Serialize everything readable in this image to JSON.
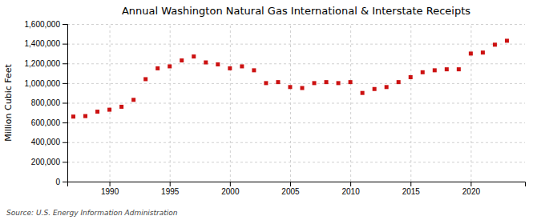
{
  "chart_data": {
    "type": "scatter",
    "title": "Annual Washington Natural Gas International & Interstate Receipts",
    "y_label": "Million Cubic Feet",
    "annotations": [
      "Source: U.S. Energy Information Administration"
    ],
    "x": [
      1987,
      1988,
      1989,
      1990,
      1991,
      1992,
      1993,
      1994,
      1995,
      1996,
      1997,
      1998,
      1999,
      2000,
      2001,
      2002,
      2003,
      2004,
      2005,
      2006,
      2007,
      2008,
      2009,
      2010,
      2011,
      2012,
      2013,
      2014,
      2015,
      2016,
      2017,
      2018,
      2019,
      2020,
      2021,
      2022,
      2023
    ],
    "values": [
      660000,
      665000,
      710000,
      730000,
      760000,
      830000,
      1040000,
      1150000,
      1170000,
      1230000,
      1270000,
      1210000,
      1190000,
      1150000,
      1170000,
      1130000,
      1000000,
      1010000,
      960000,
      950000,
      1000000,
      1010000,
      1000000,
      1010000,
      900000,
      940000,
      960000,
      1010000,
      1060000,
      1110000,
      1130000,
      1140000,
      1140000,
      1300000,
      1310000,
      1390000,
      1430000
    ],
    "color": "#cc1111",
    "marker": "square",
    "xlim": [
      1986.5,
      2024.5
    ],
    "xticks": [
      1990,
      1995,
      2000,
      2005,
      2010,
      2015,
      2020
    ],
    "ylim": [
      0,
      1600000
    ],
    "yticks": [
      0,
      {
        "value": 200000,
        "label": "200,000"
      },
      {
        "value": 400000,
        "label": "400,000"
      },
      {
        "value": 600000,
        "label": "600,000"
      },
      {
        "value": 800000,
        "label": "800,000"
      },
      {
        "value": 1000000,
        "label": "1,000,000"
      },
      {
        "value": 1200000,
        "label": "1,200,000"
      },
      {
        "value": 1400000,
        "label": "1,400,000"
      },
      {
        "value": 1600000,
        "label": "1,600,000"
      }
    ],
    "grid": true
  }
}
